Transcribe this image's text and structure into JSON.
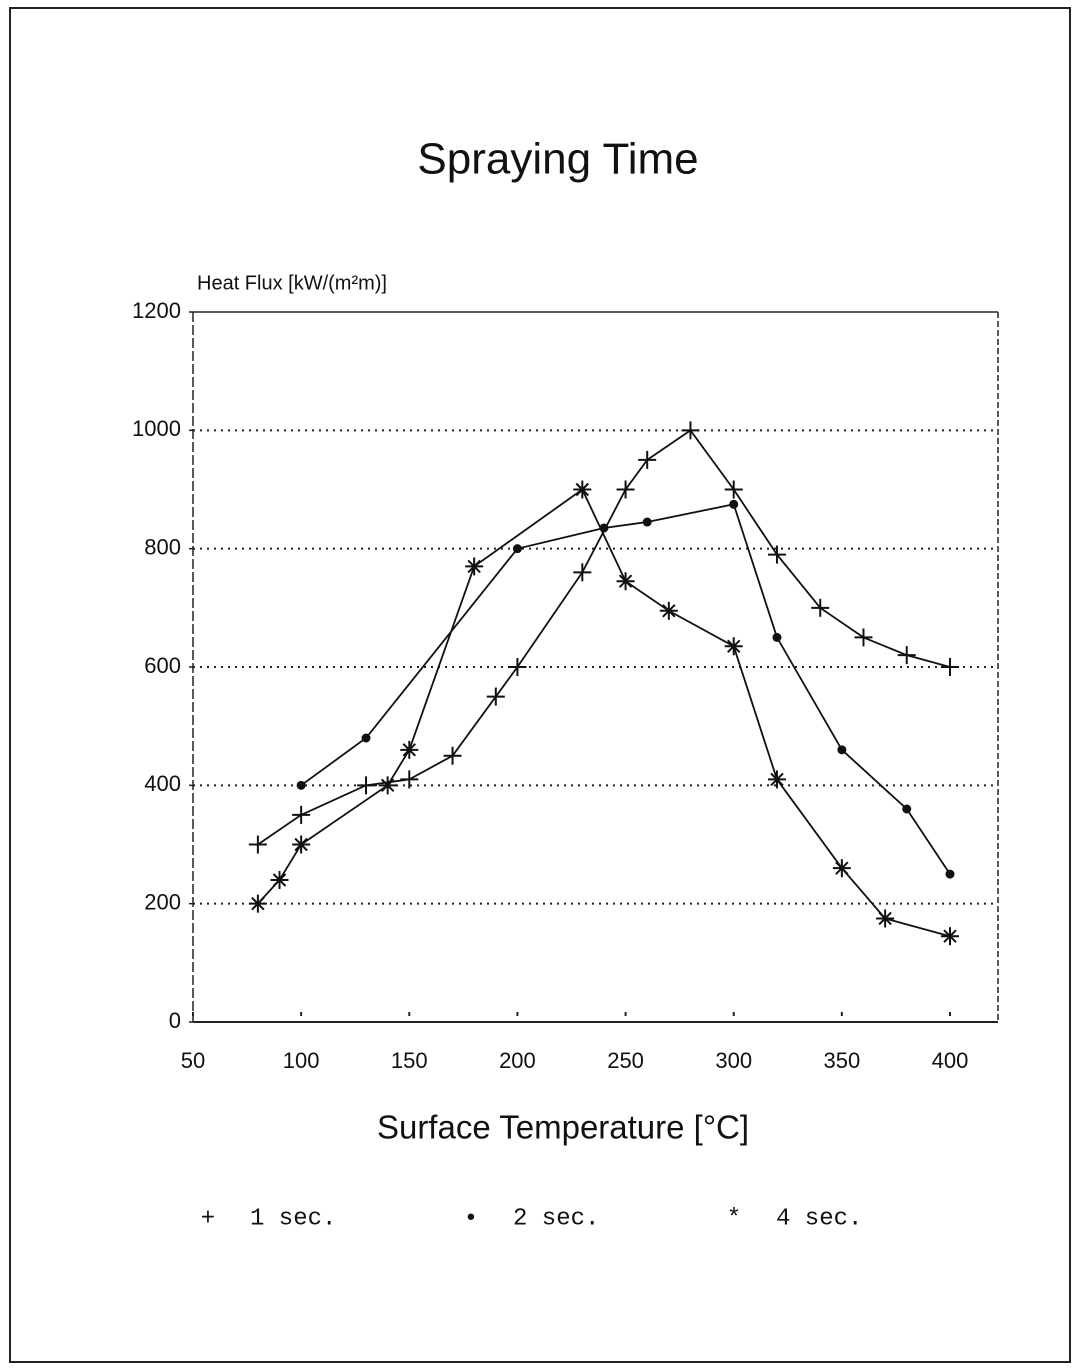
{
  "chart_data": {
    "type": "line",
    "title": "Spraying Time",
    "y_label": "Heat Flux [kW/(m²m)]",
    "x_label": "Surface Temperature [°C]",
    "xlim": [
      50,
      400
    ],
    "xticks": [
      50,
      100,
      150,
      200,
      250,
      300,
      350,
      400
    ],
    "ylim": [
      0,
      1200
    ],
    "yticks": [
      0,
      200,
      400,
      600,
      800,
      1000,
      1200
    ],
    "grid": true,
    "series": [
      {
        "name": "1 sec.",
        "marker": "+",
        "color": "#111111",
        "x": [
          80,
          100,
          130,
          150,
          170,
          190,
          200,
          230,
          250,
          260,
          280,
          300,
          320,
          340,
          360,
          380,
          400
        ],
        "values": [
          300,
          350,
          400,
          410,
          450,
          550,
          600,
          760,
          900,
          950,
          1000,
          900,
          790,
          700,
          650,
          620,
          600
        ]
      },
      {
        "name": "2 sec.",
        "marker": "•",
        "color": "#111111",
        "x": [
          100,
          130,
          200,
          240,
          260,
          300,
          320,
          350,
          380,
          400
        ],
        "values": [
          400,
          480,
          800,
          835,
          845,
          875,
          650,
          460,
          360,
          250
        ]
      },
      {
        "name": "4 sec.",
        "marker": "*",
        "color": "#111111",
        "x": [
          80,
          90,
          100,
          140,
          150,
          180,
          230,
          250,
          270,
          300,
          320,
          350,
          370,
          400
        ],
        "values": [
          200,
          240,
          300,
          400,
          460,
          770,
          900,
          745,
          695,
          635,
          410,
          260,
          175,
          145
        ]
      }
    ]
  }
}
